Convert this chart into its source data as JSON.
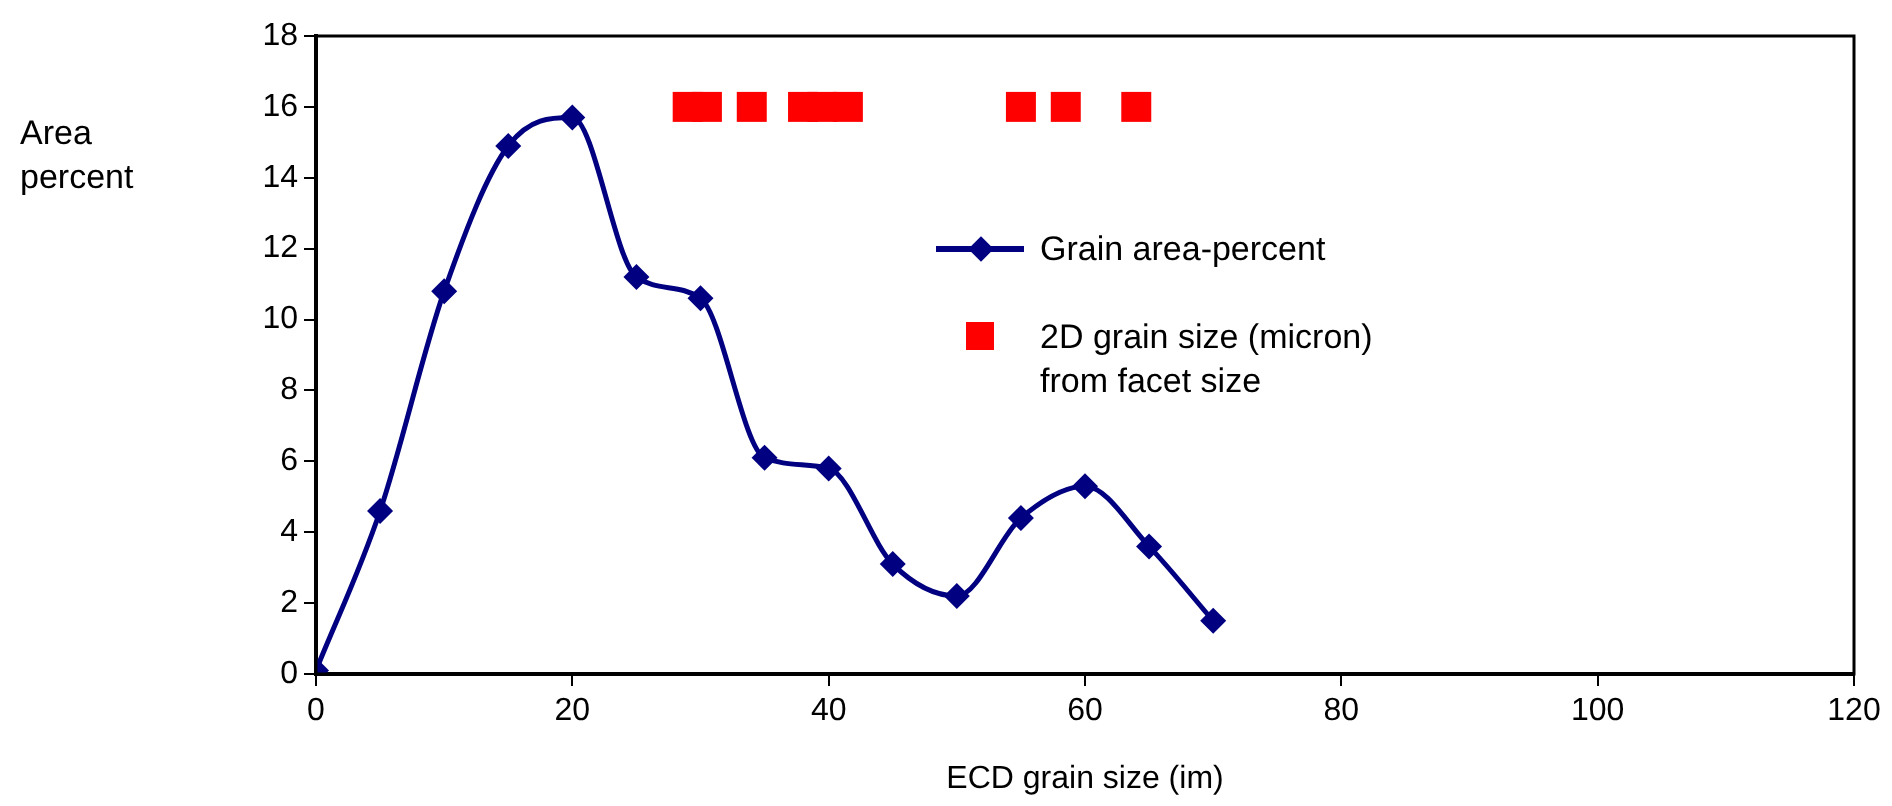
{
  "chart_data": {
    "type": "line",
    "ylabel": "Area percent",
    "xlabel": "ECD grain size (im)",
    "xlim": [
      0,
      120
    ],
    "xticks": [
      0,
      20,
      40,
      60,
      80,
      100,
      120
    ],
    "ylim": [
      0,
      18
    ],
    "yticks": [
      0,
      2,
      4,
      6,
      8,
      10,
      12,
      14,
      16,
      18
    ],
    "grid": false,
    "legend": "right",
    "series": [
      {
        "name": "Grain area-percent",
        "type": "line",
        "color": "#000080",
        "marker": "diamond",
        "x": [
          0,
          5,
          10,
          15,
          20,
          25,
          30,
          35,
          40,
          45,
          50,
          55,
          60,
          65,
          70
        ],
        "values": [
          0.1,
          4.6,
          10.8,
          14.9,
          15.7,
          11.2,
          10.6,
          6.1,
          5.8,
          3.1,
          2.2,
          4.4,
          5.3,
          3.6,
          1.5
        ]
      },
      {
        "name": "2D grain size (micron) from facet size",
        "type": "scatter",
        "color": "#ff0000",
        "marker": "square",
        "x": [
          29,
          30.5,
          33,
          34,
          38,
          39.5,
          41.5,
          55,
          58.5,
          64
        ],
        "values": [
          16,
          16,
          null,
          16,
          16,
          16,
          16,
          16,
          16,
          16
        ]
      }
    ]
  }
}
